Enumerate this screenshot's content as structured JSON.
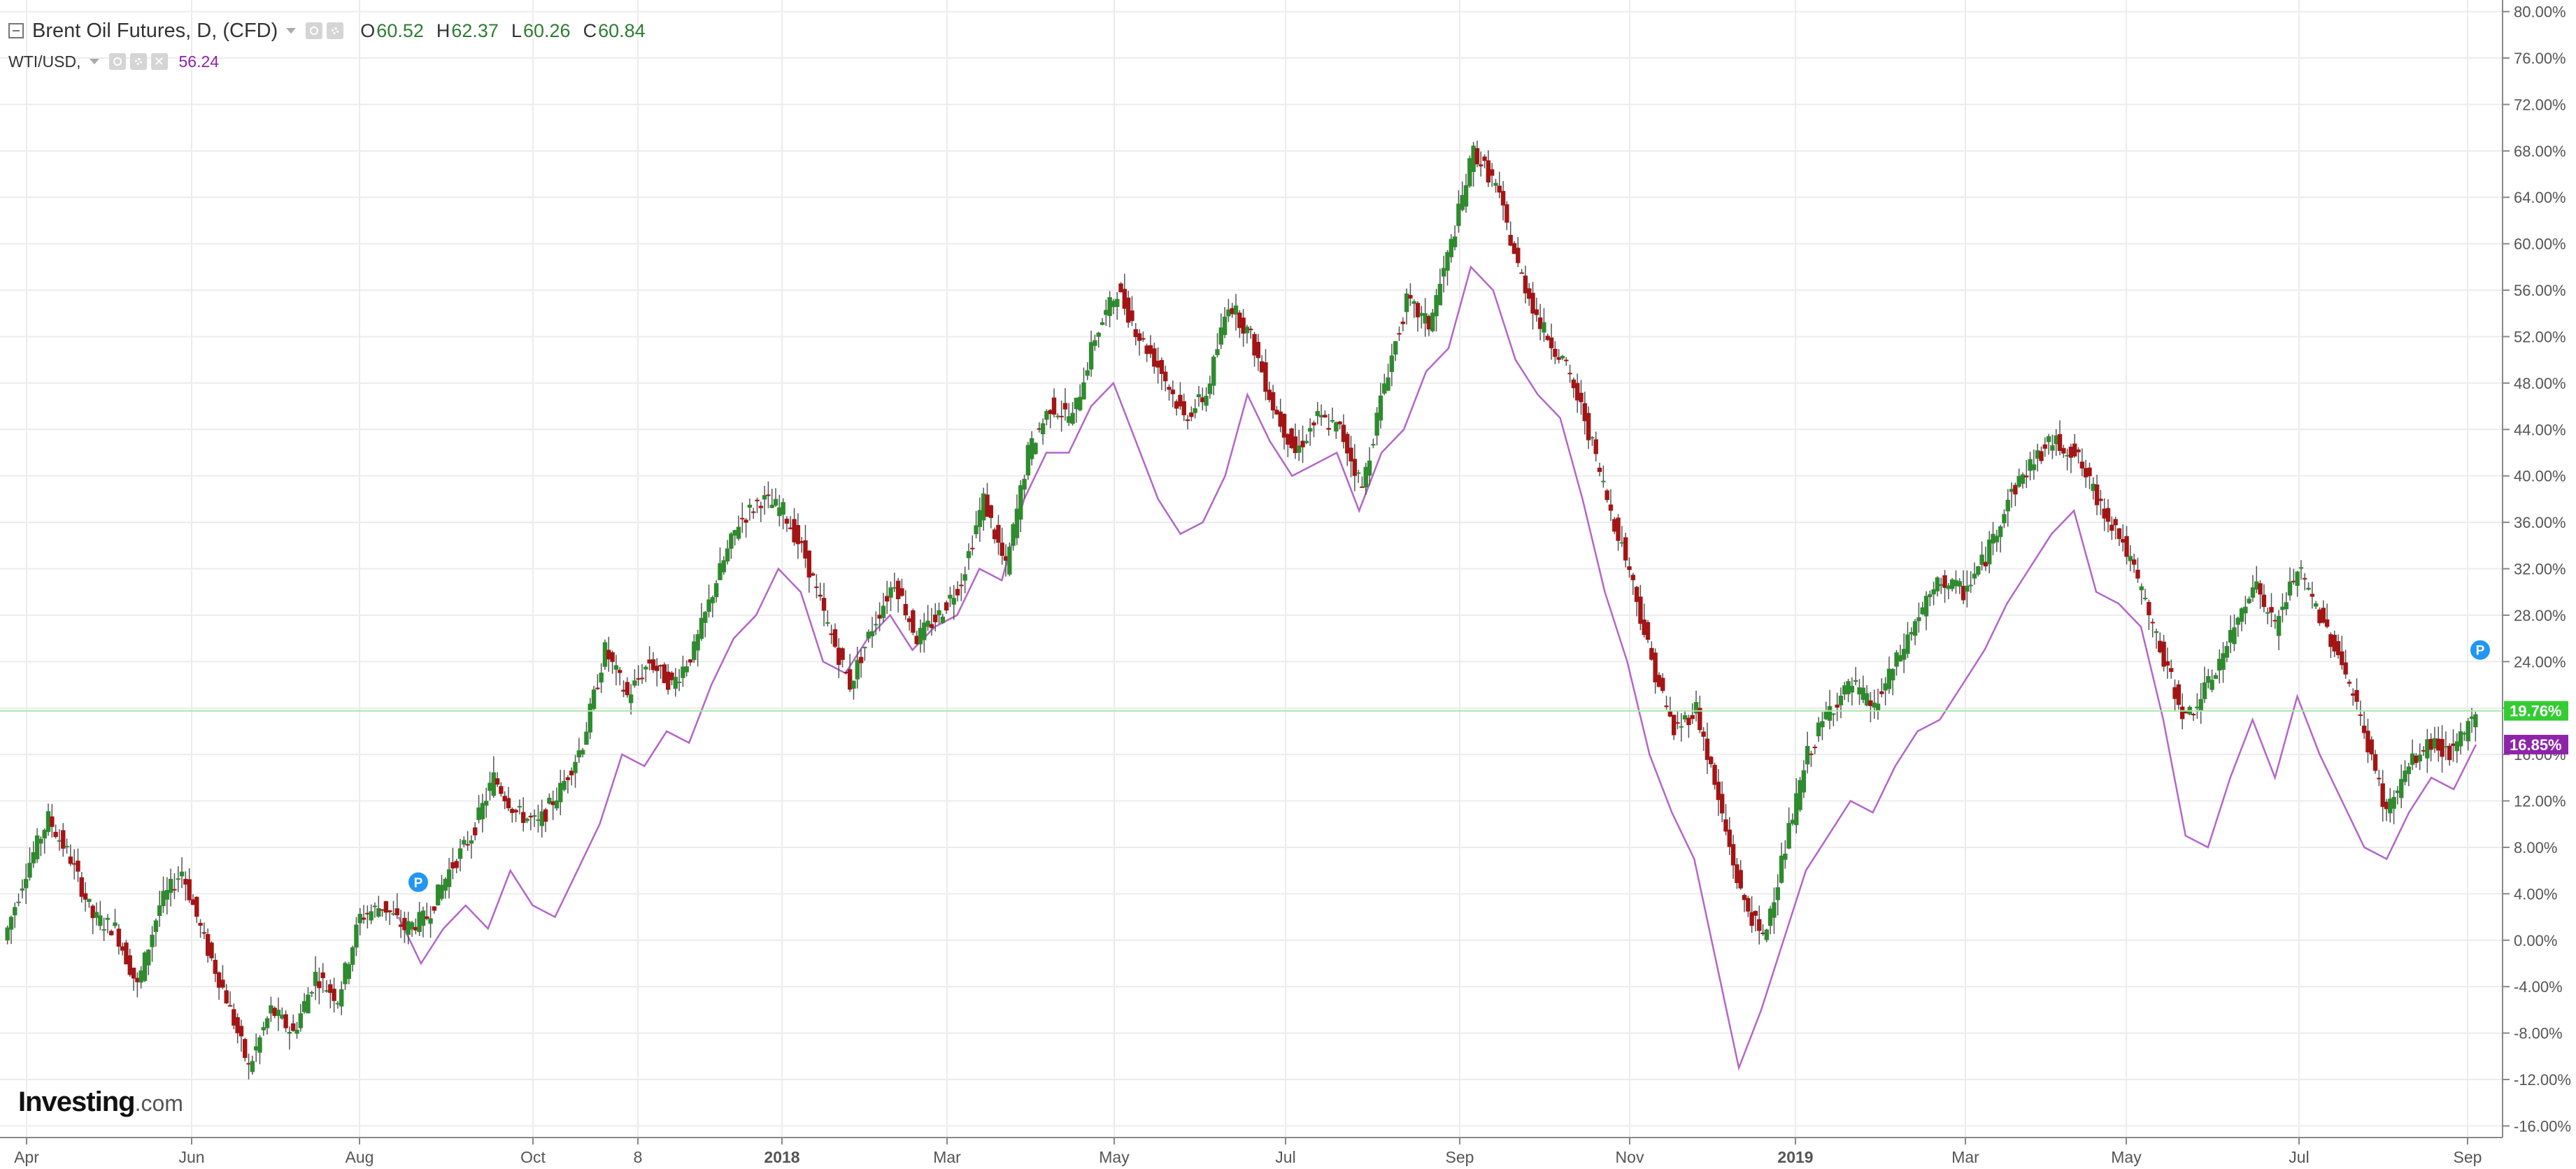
{
  "legend": {
    "symbol": "Brent Oil Futures, D, (CFD)",
    "open_key": "O",
    "open": "60.52",
    "high_key": "H",
    "high": "62.37",
    "low_key": "L",
    "low": "60.26",
    "close_key": "C",
    "close": "60.84",
    "compare_symbol": "WTI/USD,",
    "compare_value": "56.24"
  },
  "logo": {
    "text": "Investing",
    "suffix": ".com"
  },
  "colors": {
    "up": "#2e8b2e",
    "down": "#a31515",
    "compare_line": "#b366c8",
    "current_line": "#a6e8a6",
    "brent_tag": "#33cc33",
    "wti_tag": "#8e24aa"
  },
  "chart_data": {
    "type": "line",
    "title": "Brent Oil Futures, D, (CFD)",
    "x_axis": {
      "labels": [
        "Apr",
        "Jun",
        "Aug",
        "Oct",
        "8",
        "2018",
        "Mar",
        "May",
        "Jul",
        "Sep",
        "Nov",
        "2019",
        "Mar",
        "May",
        "Jul",
        "Sep"
      ],
      "bold_labels": [
        "2018",
        "2019"
      ]
    },
    "y_axis": {
      "unit": "%",
      "ylim": [
        -17,
        81
      ],
      "ticks": [
        "80.00%",
        "76.00%",
        "72.00%",
        "68.00%",
        "64.00%",
        "60.00%",
        "56.00%",
        "52.00%",
        "48.00%",
        "44.00%",
        "40.00%",
        "36.00%",
        "32.00%",
        "28.00%",
        "24.00%",
        "20.00%",
        "16.00%",
        "12.00%",
        "8.00%",
        "4.00%",
        "0.00%",
        "-4.00%",
        "-8.00%",
        "-12.00%",
        "-16.00%"
      ],
      "position": "right"
    },
    "grid": true,
    "series": [
      {
        "name": "Brent Oil Futures, D, (CFD)",
        "style": "candlestick",
        "points": [
          [
            "Apr",
            0
          ],
          [
            "Apr",
            6
          ],
          [
            "Apr",
            10.5
          ],
          [
            "Apr",
            7
          ],
          [
            "May",
            2
          ],
          [
            "May",
            1
          ],
          [
            "May",
            -4
          ],
          [
            "May",
            3
          ],
          [
            "May",
            6
          ],
          [
            "Jun",
            0
          ],
          [
            "Jun",
            -5
          ],
          [
            "Jun",
            -11
          ],
          [
            "Jul",
            -6
          ],
          [
            "Jul",
            -8
          ],
          [
            "Jul",
            -3
          ],
          [
            "Jul",
            -5
          ],
          [
            "Aug",
            2
          ],
          [
            "Aug",
            3
          ],
          [
            "Aug",
            1
          ],
          [
            "Aug",
            2
          ],
          [
            "Sep",
            6
          ],
          [
            "Sep",
            9
          ],
          [
            "Sep",
            14
          ],
          [
            "Oct",
            11
          ],
          [
            "Oct",
            10
          ],
          [
            "Oct",
            13
          ],
          [
            "Oct",
            17
          ],
          [
            "Nov",
            25
          ],
          [
            "Nov",
            21
          ],
          [
            "Nov",
            24
          ],
          [
            "Dec",
            22
          ],
          [
            "Dec",
            25
          ],
          [
            "Dec",
            31
          ],
          [
            "Dec",
            36
          ],
          [
            "2018",
            38
          ],
          [
            "2018",
            37
          ],
          [
            "2018",
            33
          ],
          [
            "Feb",
            27
          ],
          [
            "Feb",
            22
          ],
          [
            "Feb",
            27
          ],
          [
            "Mar",
            31
          ],
          [
            "Mar",
            26
          ],
          [
            "Mar",
            28
          ],
          [
            "Mar",
            31
          ],
          [
            "Apr",
            38
          ],
          [
            "Apr",
            32
          ],
          [
            "Apr",
            42
          ],
          [
            "Apr",
            46
          ],
          [
            "May",
            45
          ],
          [
            "May",
            52
          ],
          [
            "May",
            56
          ],
          [
            "May",
            52
          ],
          [
            "Jun",
            49
          ],
          [
            "Jun",
            45
          ],
          [
            "Jun",
            47
          ],
          [
            "Jun",
            55
          ],
          [
            "Jul",
            52
          ],
          [
            "Jul",
            46
          ],
          [
            "Jul",
            42
          ],
          [
            "Jul",
            45
          ],
          [
            "Aug",
            44
          ],
          [
            "Aug",
            39
          ],
          [
            "Aug",
            48
          ],
          [
            "Aug",
            55
          ],
          [
            "Sep",
            53
          ],
          [
            "Sep",
            60
          ],
          [
            "Sep",
            68
          ],
          [
            "Oct",
            65
          ],
          [
            "Oct",
            58
          ],
          [
            "Oct",
            53
          ],
          [
            "Oct",
            50
          ],
          [
            "Nov",
            45
          ],
          [
            "Nov",
            38
          ],
          [
            "Nov",
            32
          ],
          [
            "Nov",
            24
          ],
          [
            "Dec",
            18
          ],
          [
            "Dec",
            20
          ],
          [
            "Dec",
            12
          ],
          [
            "Dec",
            4
          ],
          [
            "2019",
            0
          ],
          [
            "2019",
            8
          ],
          [
            "2019",
            16
          ],
          [
            "2019",
            20
          ],
          [
            "Feb",
            22
          ],
          [
            "Feb",
            20
          ],
          [
            "Feb",
            24
          ],
          [
            "Mar",
            28
          ],
          [
            "Mar",
            31
          ],
          [
            "Mar",
            30
          ],
          [
            "Apr",
            33
          ],
          [
            "Apr",
            38
          ],
          [
            "Apr",
            41
          ],
          [
            "Apr",
            43
          ],
          [
            "May",
            42
          ],
          [
            "May",
            38
          ],
          [
            "May",
            35
          ],
          [
            "May",
            30
          ],
          [
            "Jun",
            24
          ],
          [
            "Jun",
            19
          ],
          [
            "Jun",
            22
          ],
          [
            "Jun",
            26
          ],
          [
            "Jul",
            31
          ],
          [
            "Jul",
            27
          ],
          [
            "Jul",
            32
          ],
          [
            "Jul",
            28
          ],
          [
            "Aug",
            24
          ],
          [
            "Aug",
            18
          ],
          [
            "Aug",
            11
          ],
          [
            "Aug",
            15
          ],
          [
            "Aug",
            17
          ],
          [
            "Sep",
            16
          ],
          [
            "Sep",
            19.76
          ]
        ]
      },
      {
        "name": "WTI/USD",
        "style": "line",
        "points": [
          [
            "Aug",
            2
          ],
          [
            "Aug",
            -2
          ],
          [
            "Aug",
            1
          ],
          [
            "Sep",
            3
          ],
          [
            "Sep",
            1
          ],
          [
            "Sep",
            6
          ],
          [
            "Oct",
            3
          ],
          [
            "Oct",
            2
          ],
          [
            "Oct",
            6
          ],
          [
            "Nov",
            10
          ],
          [
            "Nov",
            16
          ],
          [
            "Nov",
            15
          ],
          [
            "Dec",
            18
          ],
          [
            "Dec",
            17
          ],
          [
            "Dec",
            22
          ],
          [
            "Dec",
            26
          ],
          [
            "2018",
            28
          ],
          [
            "2018",
            32
          ],
          [
            "2018",
            30
          ],
          [
            "Feb",
            24
          ],
          [
            "Feb",
            23
          ],
          [
            "Feb",
            26
          ],
          [
            "Mar",
            28
          ],
          [
            "Mar",
            25
          ],
          [
            "Mar",
            27
          ],
          [
            "Mar",
            28
          ],
          [
            "Apr",
            32
          ],
          [
            "Apr",
            31
          ],
          [
            "Apr",
            38
          ],
          [
            "Apr",
            42
          ],
          [
            "May",
            42
          ],
          [
            "May",
            46
          ],
          [
            "May",
            48
          ],
          [
            "May",
            43
          ],
          [
            "Jun",
            38
          ],
          [
            "Jun",
            35
          ],
          [
            "Jun",
            36
          ],
          [
            "Jun",
            40
          ],
          [
            "Jul",
            47
          ],
          [
            "Jul",
            43
          ],
          [
            "Jul",
            40
          ],
          [
            "Jul",
            41
          ],
          [
            "Aug",
            42
          ],
          [
            "Aug",
            37
          ],
          [
            "Aug",
            42
          ],
          [
            "Aug",
            44
          ],
          [
            "Sep",
            49
          ],
          [
            "Sep",
            51
          ],
          [
            "Sep",
            58
          ],
          [
            "Oct",
            56
          ],
          [
            "Oct",
            50
          ],
          [
            "Oct",
            47
          ],
          [
            "Oct",
            45
          ],
          [
            "Nov",
            38
          ],
          [
            "Nov",
            30
          ],
          [
            "Nov",
            24
          ],
          [
            "Nov",
            16
          ],
          [
            "Dec",
            11
          ],
          [
            "Dec",
            7
          ],
          [
            "Dec",
            -2
          ],
          [
            "Dec",
            -11
          ],
          [
            "2019",
            -6
          ],
          [
            "2019",
            0
          ],
          [
            "2019",
            6
          ],
          [
            "2019",
            9
          ],
          [
            "Feb",
            12
          ],
          [
            "Feb",
            11
          ],
          [
            "Feb",
            15
          ],
          [
            "Mar",
            18
          ],
          [
            "Mar",
            19
          ],
          [
            "Mar",
            22
          ],
          [
            "Apr",
            25
          ],
          [
            "Apr",
            29
          ],
          [
            "Apr",
            32
          ],
          [
            "Apr",
            35
          ],
          [
            "May",
            37
          ],
          [
            "May",
            30
          ],
          [
            "May",
            29
          ],
          [
            "May",
            27
          ],
          [
            "Jun",
            19
          ],
          [
            "Jun",
            9
          ],
          [
            "Jun",
            8
          ],
          [
            "Jun",
            14
          ],
          [
            "Jul",
            19
          ],
          [
            "Jul",
            14
          ],
          [
            "Jul",
            21
          ],
          [
            "Jul",
            16
          ],
          [
            "Aug",
            12
          ],
          [
            "Aug",
            8
          ],
          [
            "Aug",
            7
          ],
          [
            "Aug",
            11
          ],
          [
            "Aug",
            14
          ],
          [
            "Sep",
            13
          ],
          [
            "Sep",
            16.85
          ]
        ]
      }
    ],
    "current_values": {
      "brent": "19.76%",
      "wti": "16.85%"
    },
    "event_markers": [
      {
        "label": "P",
        "x": "Aug",
        "y": 5
      },
      {
        "label": "P",
        "x": "Sep",
        "y": 25
      }
    ]
  }
}
